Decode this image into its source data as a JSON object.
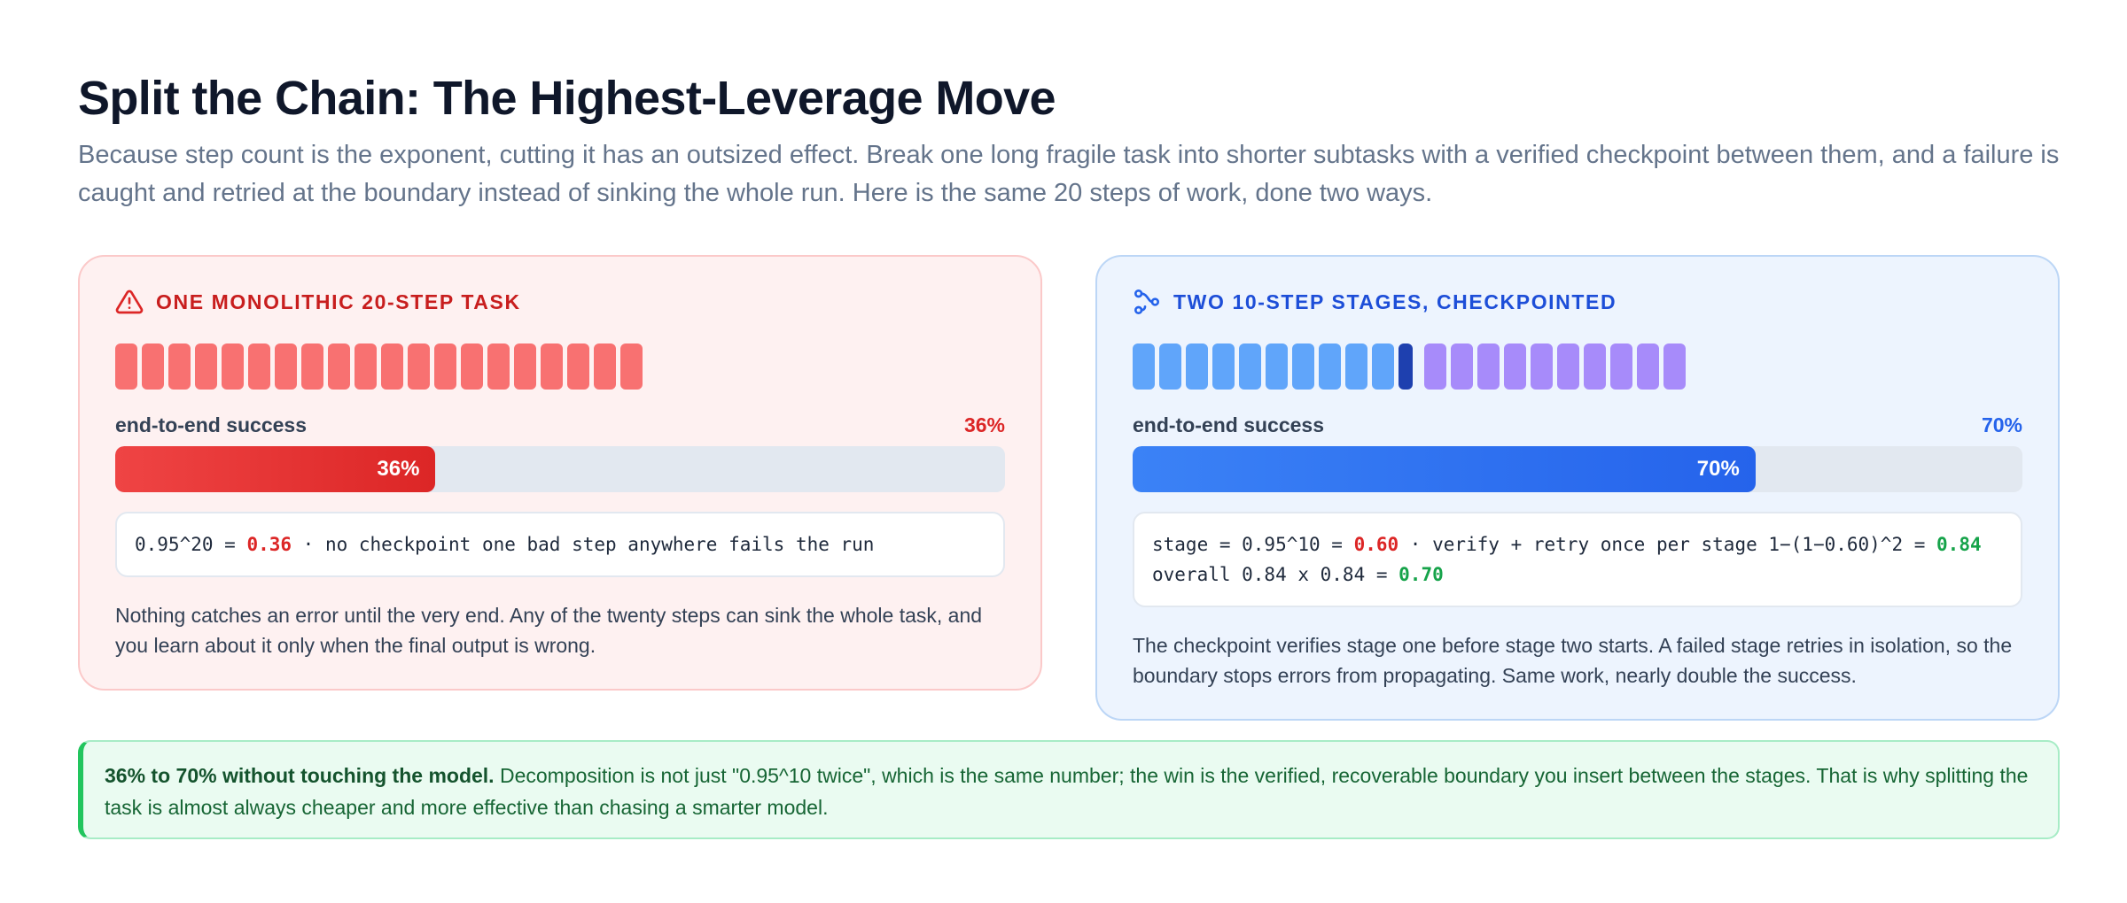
{
  "header": {
    "title": "Split the Chain: The Highest-Leverage Move",
    "subtitle": "Because step count is the exponent, cutting it has an outsized effect. Break one long fragile task into shorter subtasks with a verified checkpoint between them, and a failure is caught and retried at the boundary instead of sinking the whole run. Here is the same 20 steps of work, done two ways."
  },
  "left_card": {
    "icon": "warning-triangle-icon",
    "title": "ONE MONOLITHIC 20-STEP TASK",
    "step_count": 20,
    "metric_label": "end-to-end success",
    "metric_value": "36%",
    "bar_label": "36%",
    "success_fraction": 0.36,
    "formula": {
      "part1": "0.95^20 = ",
      "hl1": "0.36",
      "part2": " · no checkpoint one bad step anywhere fails the run"
    },
    "description": "Nothing catches an error until the very end. Any of the twenty steps can sink the whole task, and you learn about it only when the final output is wrong.",
    "colors": {
      "step": "#f87171",
      "bar": "#dc2626",
      "accent": "#c81e1e"
    }
  },
  "right_card": {
    "icon": "split-flow-icon",
    "title": "TWO 10-STEP STAGES, CHECKPOINTED",
    "stage1_steps": 10,
    "stage2_steps": 10,
    "metric_label": "end-to-end success",
    "metric_value": "70%",
    "bar_label": "70%",
    "success_fraction": 0.7,
    "formula": {
      "part1": "stage = 0.95^10 = ",
      "hl1": "0.60",
      "part2": " · verify + retry once per stage 1−(1−0.60)^2 = ",
      "hl2": "0.84",
      "part3": " overall 0.84 x 0.84 = ",
      "hl3": "0.70"
    },
    "description": "The checkpoint verifies stage one before stage two starts. A failed stage retries in isolation, so the boundary stops errors from propagating. Same work, nearly double the success.",
    "colors": {
      "stage1": "#60a5fa",
      "checkpoint": "#1e40af",
      "stage2": "#a78bfa",
      "bar": "#2563eb",
      "accent": "#1d4ed8"
    }
  },
  "callout": {
    "bold": "36% to 70% without touching the model.",
    "text": " Decomposition is not just \"0.95^10 twice\", which is the same number; the win is the verified, recoverable boundary you insert between the stages. That is why splitting the task is almost always cheaper and more effective than chasing a smarter model.",
    "colors": {
      "accent": "#22c55e"
    }
  }
}
